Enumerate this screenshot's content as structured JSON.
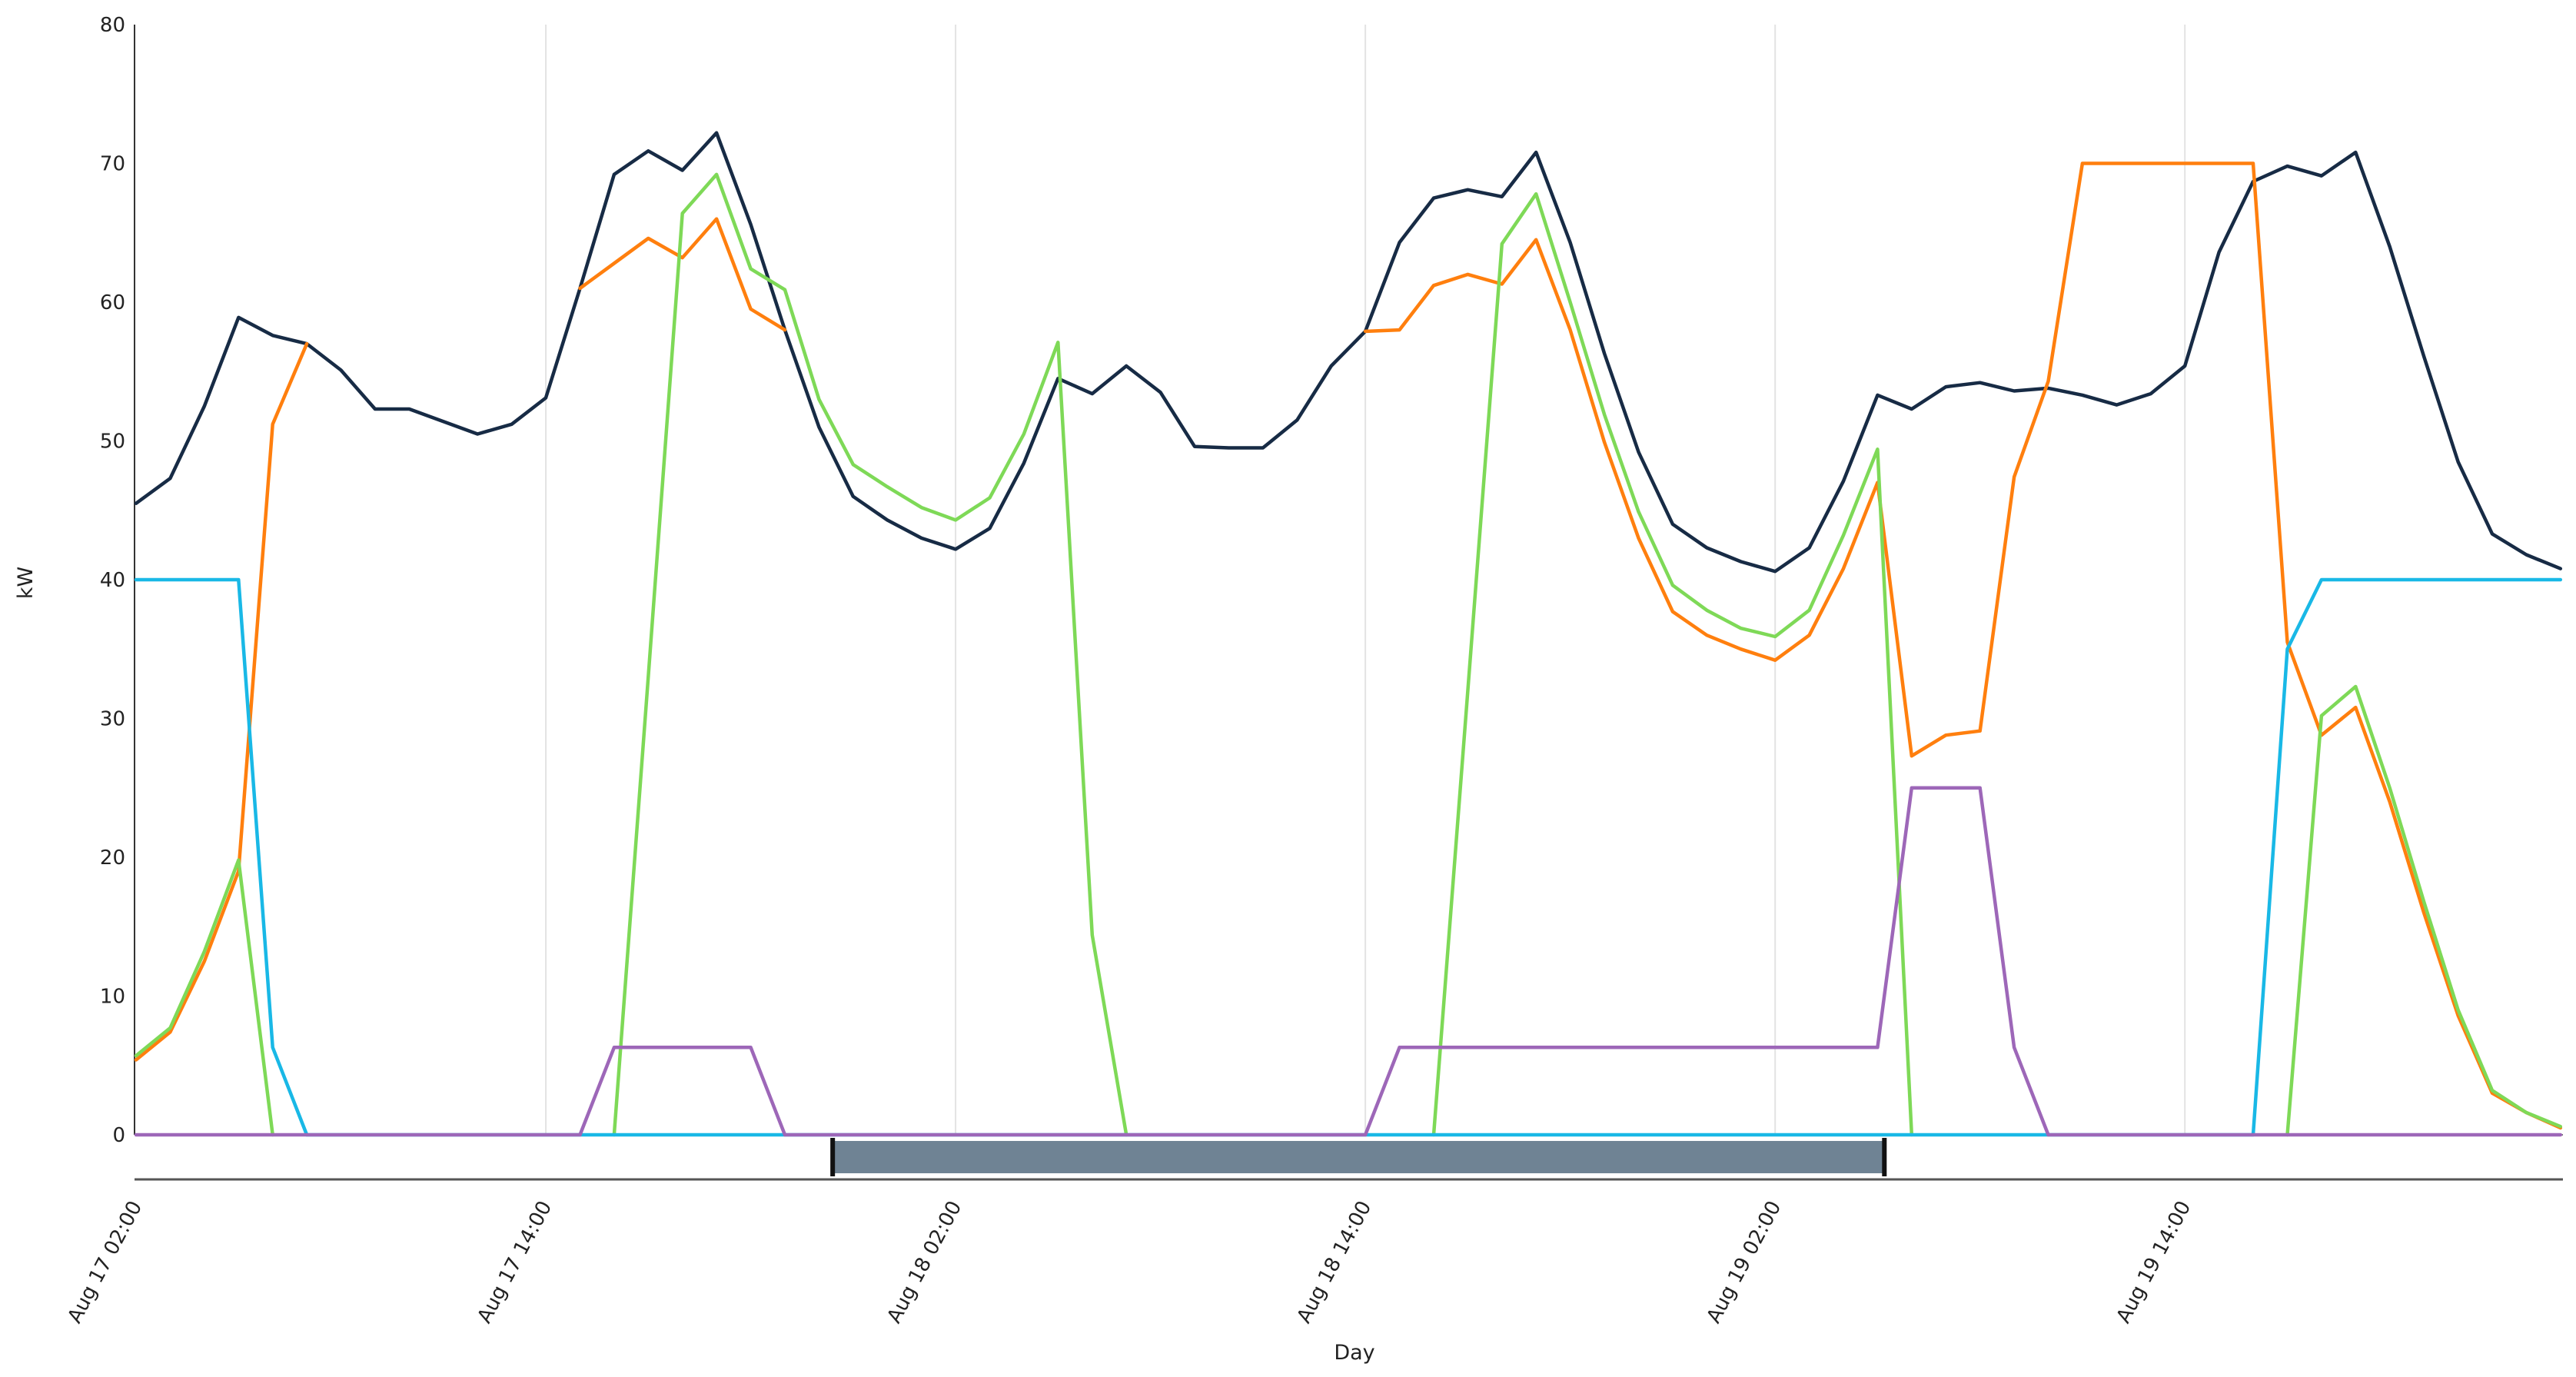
{
  "chart_data": {
    "type": "line",
    "title": "",
    "xlabel": "Day",
    "ylabel": "kW",
    "ylim": [
      0,
      80
    ],
    "yticks": [
      0,
      10,
      20,
      30,
      40,
      50,
      60,
      70,
      80
    ],
    "x_start_label": "Aug 17 02:00",
    "x_step_hours": 1,
    "x_tick_labels": [
      "Aug 17 02:00",
      "Aug 17 14:00",
      "Aug 18 02:00",
      "Aug 18 14:00",
      "Aug 19 02:00",
      "Aug 19 14:00"
    ],
    "x_tick_index": [
      0,
      12,
      24,
      36,
      48,
      60
    ],
    "grid": "vertical",
    "legend": "none",
    "series": [
      {
        "color": "#172b45",
        "values": [
          45.5,
          47.3,
          52.5,
          58.9,
          57.6,
          57.0,
          55.1,
          52.3,
          52.3,
          51.4,
          50.5,
          51.2,
          53.1,
          61.0,
          69.2,
          70.9,
          69.5,
          72.2,
          65.6,
          58.0,
          51.0,
          46.0,
          44.3,
          43.0,
          42.2,
          43.7,
          48.4,
          54.5,
          53.4,
          55.4,
          53.5,
          49.6,
          49.5,
          49.5,
          51.5,
          55.4,
          57.9,
          64.3,
          67.5,
          68.1,
          67.6,
          70.8,
          64.3,
          56.3,
          49.2,
          44.0,
          42.3,
          41.3,
          40.6,
          42.3,
          47.1,
          53.3,
          52.3,
          53.9,
          54.2,
          53.6,
          53.8,
          53.3,
          52.6,
          53.4,
          55.4,
          63.6,
          68.7,
          69.8,
          69.1,
          70.8,
          64.0,
          56.1,
          48.5,
          43.3,
          41.8,
          40.8
        ]
      },
      {
        "color": "#ff7f0e",
        "values": [
          5.4,
          7.4,
          12.5,
          19.0,
          51.2,
          57.0,
          null,
          null,
          null,
          null,
          null,
          null,
          null,
          61.0,
          62.8,
          64.6,
          63.2,
          66.0,
          59.5,
          58.0,
          null,
          null,
          null,
          null,
          null,
          null,
          null,
          null,
          null,
          null,
          null,
          null,
          null,
          null,
          null,
          null,
          57.9,
          58.0,
          61.2,
          62.0,
          61.3,
          64.5,
          58.0,
          49.9,
          43.0,
          37.7,
          36.0,
          35.0,
          34.2,
          36.0,
          40.8,
          47.0,
          27.3,
          28.8,
          29.1,
          47.4,
          54.3,
          70.0,
          70.0,
          70.0,
          70.0,
          70.0,
          70.0,
          35.5,
          28.8,
          30.8,
          24.0,
          16.0,
          8.6,
          3.0,
          1.6,
          0.5
        ]
      },
      {
        "color": "#7ed957",
        "values": [
          5.7,
          7.7,
          13.2,
          19.8,
          0,
          null,
          null,
          null,
          null,
          null,
          null,
          null,
          null,
          null,
          0,
          33.0,
          66.4,
          69.2,
          62.4,
          60.9,
          53.0,
          48.3,
          46.7,
          45.2,
          44.3,
          45.9,
          50.5,
          57.1,
          14.4,
          0,
          null,
          null,
          null,
          null,
          null,
          null,
          null,
          null,
          0,
          32.0,
          64.2,
          67.8,
          60.0,
          51.9,
          44.9,
          39.6,
          37.8,
          36.5,
          35.9,
          37.8,
          43.2,
          49.4,
          0,
          null,
          null,
          null,
          null,
          null,
          null,
          null,
          null,
          null,
          null,
          0,
          30.2,
          32.3,
          25.0,
          16.8,
          9.0,
          3.2,
          1.6,
          0.6
        ]
      },
      {
        "color": "#19b8e6",
        "values": [
          40,
          40,
          40,
          40,
          6.3,
          0,
          0,
          0,
          0,
          0,
          0,
          0,
          0,
          0,
          0,
          0,
          0,
          0,
          0,
          0,
          0,
          0,
          0,
          0,
          0,
          0,
          0,
          0,
          0,
          0,
          0,
          0,
          0,
          0,
          0,
          0,
          0,
          0,
          0,
          0,
          0,
          0,
          0,
          0,
          0,
          0,
          0,
          0,
          0,
          0,
          0,
          0,
          0,
          0,
          0,
          0,
          0,
          0,
          0,
          0,
          0,
          0,
          0,
          35.0,
          40,
          40,
          40,
          40,
          40,
          40,
          40,
          40
        ]
      },
      {
        "color": "#9d67b8",
        "values": [
          0,
          0,
          0,
          0,
          0,
          0,
          0,
          0,
          0,
          0,
          0,
          0,
          0,
          0,
          6.3,
          6.3,
          6.3,
          6.3,
          6.3,
          0,
          0,
          0,
          0,
          0,
          0,
          0,
          0,
          0,
          0,
          0,
          0,
          0,
          0,
          0,
          0,
          0,
          0,
          6.3,
          6.3,
          6.3,
          6.3,
          6.3,
          6.3,
          6.3,
          6.3,
          6.3,
          6.3,
          6.3,
          6.3,
          6.3,
          6.3,
          6.3,
          25.0,
          25.0,
          25.0,
          6.3,
          0,
          0,
          0,
          0,
          0,
          0,
          0,
          0,
          0,
          0,
          0,
          0,
          0,
          0,
          0,
          0
        ]
      }
    ],
    "brush": {
      "from_index": 20.4,
      "to_index": 51.2,
      "color": "#6f8394",
      "handle_color": "#111111"
    }
  }
}
